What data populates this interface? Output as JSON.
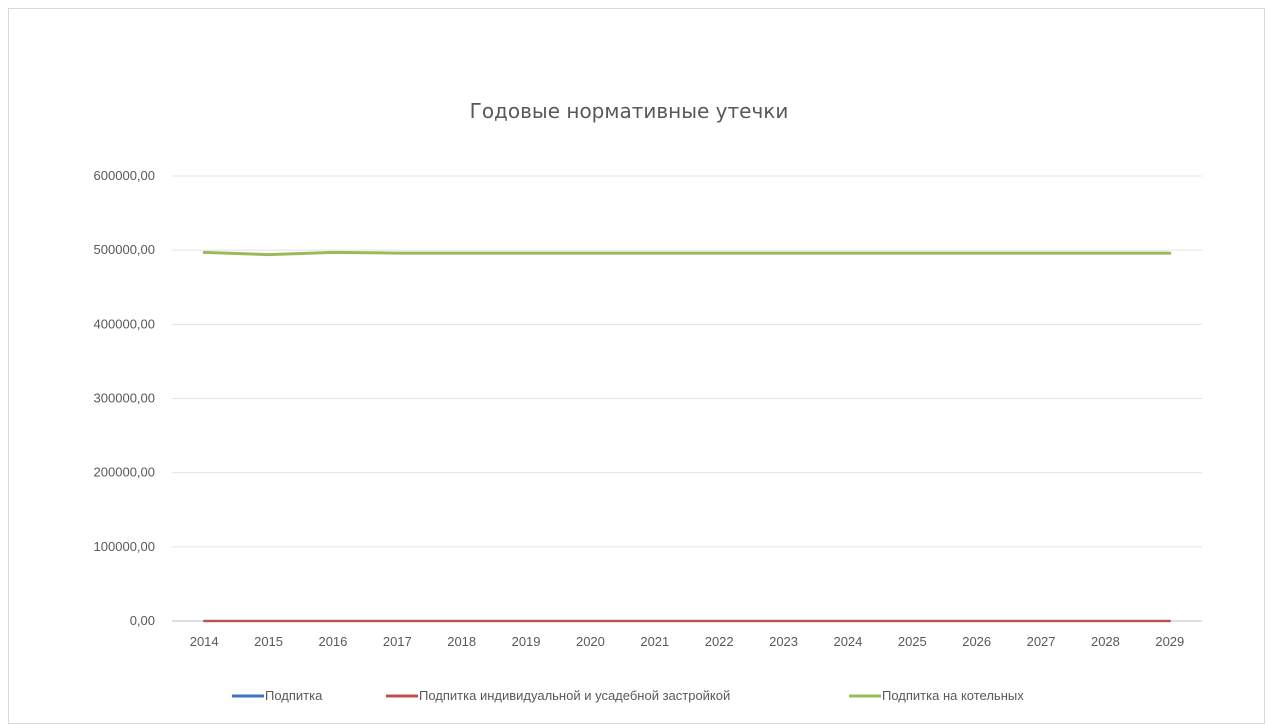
{
  "chart_data": {
    "type": "line",
    "title": "Годовые нормативные утечки",
    "xlabel": "",
    "ylabel": "",
    "ylim": [
      0,
      600000
    ],
    "y_ticks": [
      "0,00",
      "100000,00",
      "200000,00",
      "300000,00",
      "400000,00",
      "500000,00",
      "600000,00"
    ],
    "categories": [
      "2014",
      "2015",
      "2016",
      "2017",
      "2018",
      "2019",
      "2020",
      "2021",
      "2022",
      "2023",
      "2024",
      "2025",
      "2026",
      "2027",
      "2028",
      "2029"
    ],
    "grid": true,
    "legend_position": "bottom",
    "series": [
      {
        "name": "Подпитка",
        "color": "#4472c4",
        "values": [
          0,
          0,
          0,
          0,
          0,
          0,
          0,
          0,
          0,
          0,
          0,
          0,
          0,
          0,
          0,
          0
        ]
      },
      {
        "name": "Подпитка  индивидуальной и усадебной застройкой",
        "color": "#c0504d",
        "values": [
          0,
          0,
          0,
          0,
          0,
          0,
          0,
          0,
          0,
          0,
          0,
          0,
          0,
          0,
          0,
          0
        ]
      },
      {
        "name": "Подпитка на котельных",
        "color": "#9bbb59",
        "values": [
          497000,
          494000,
          497000,
          496000,
          496000,
          496000,
          496000,
          496000,
          496000,
          496000,
          496000,
          496000,
          496000,
          496000,
          496000,
          496000
        ]
      }
    ]
  }
}
